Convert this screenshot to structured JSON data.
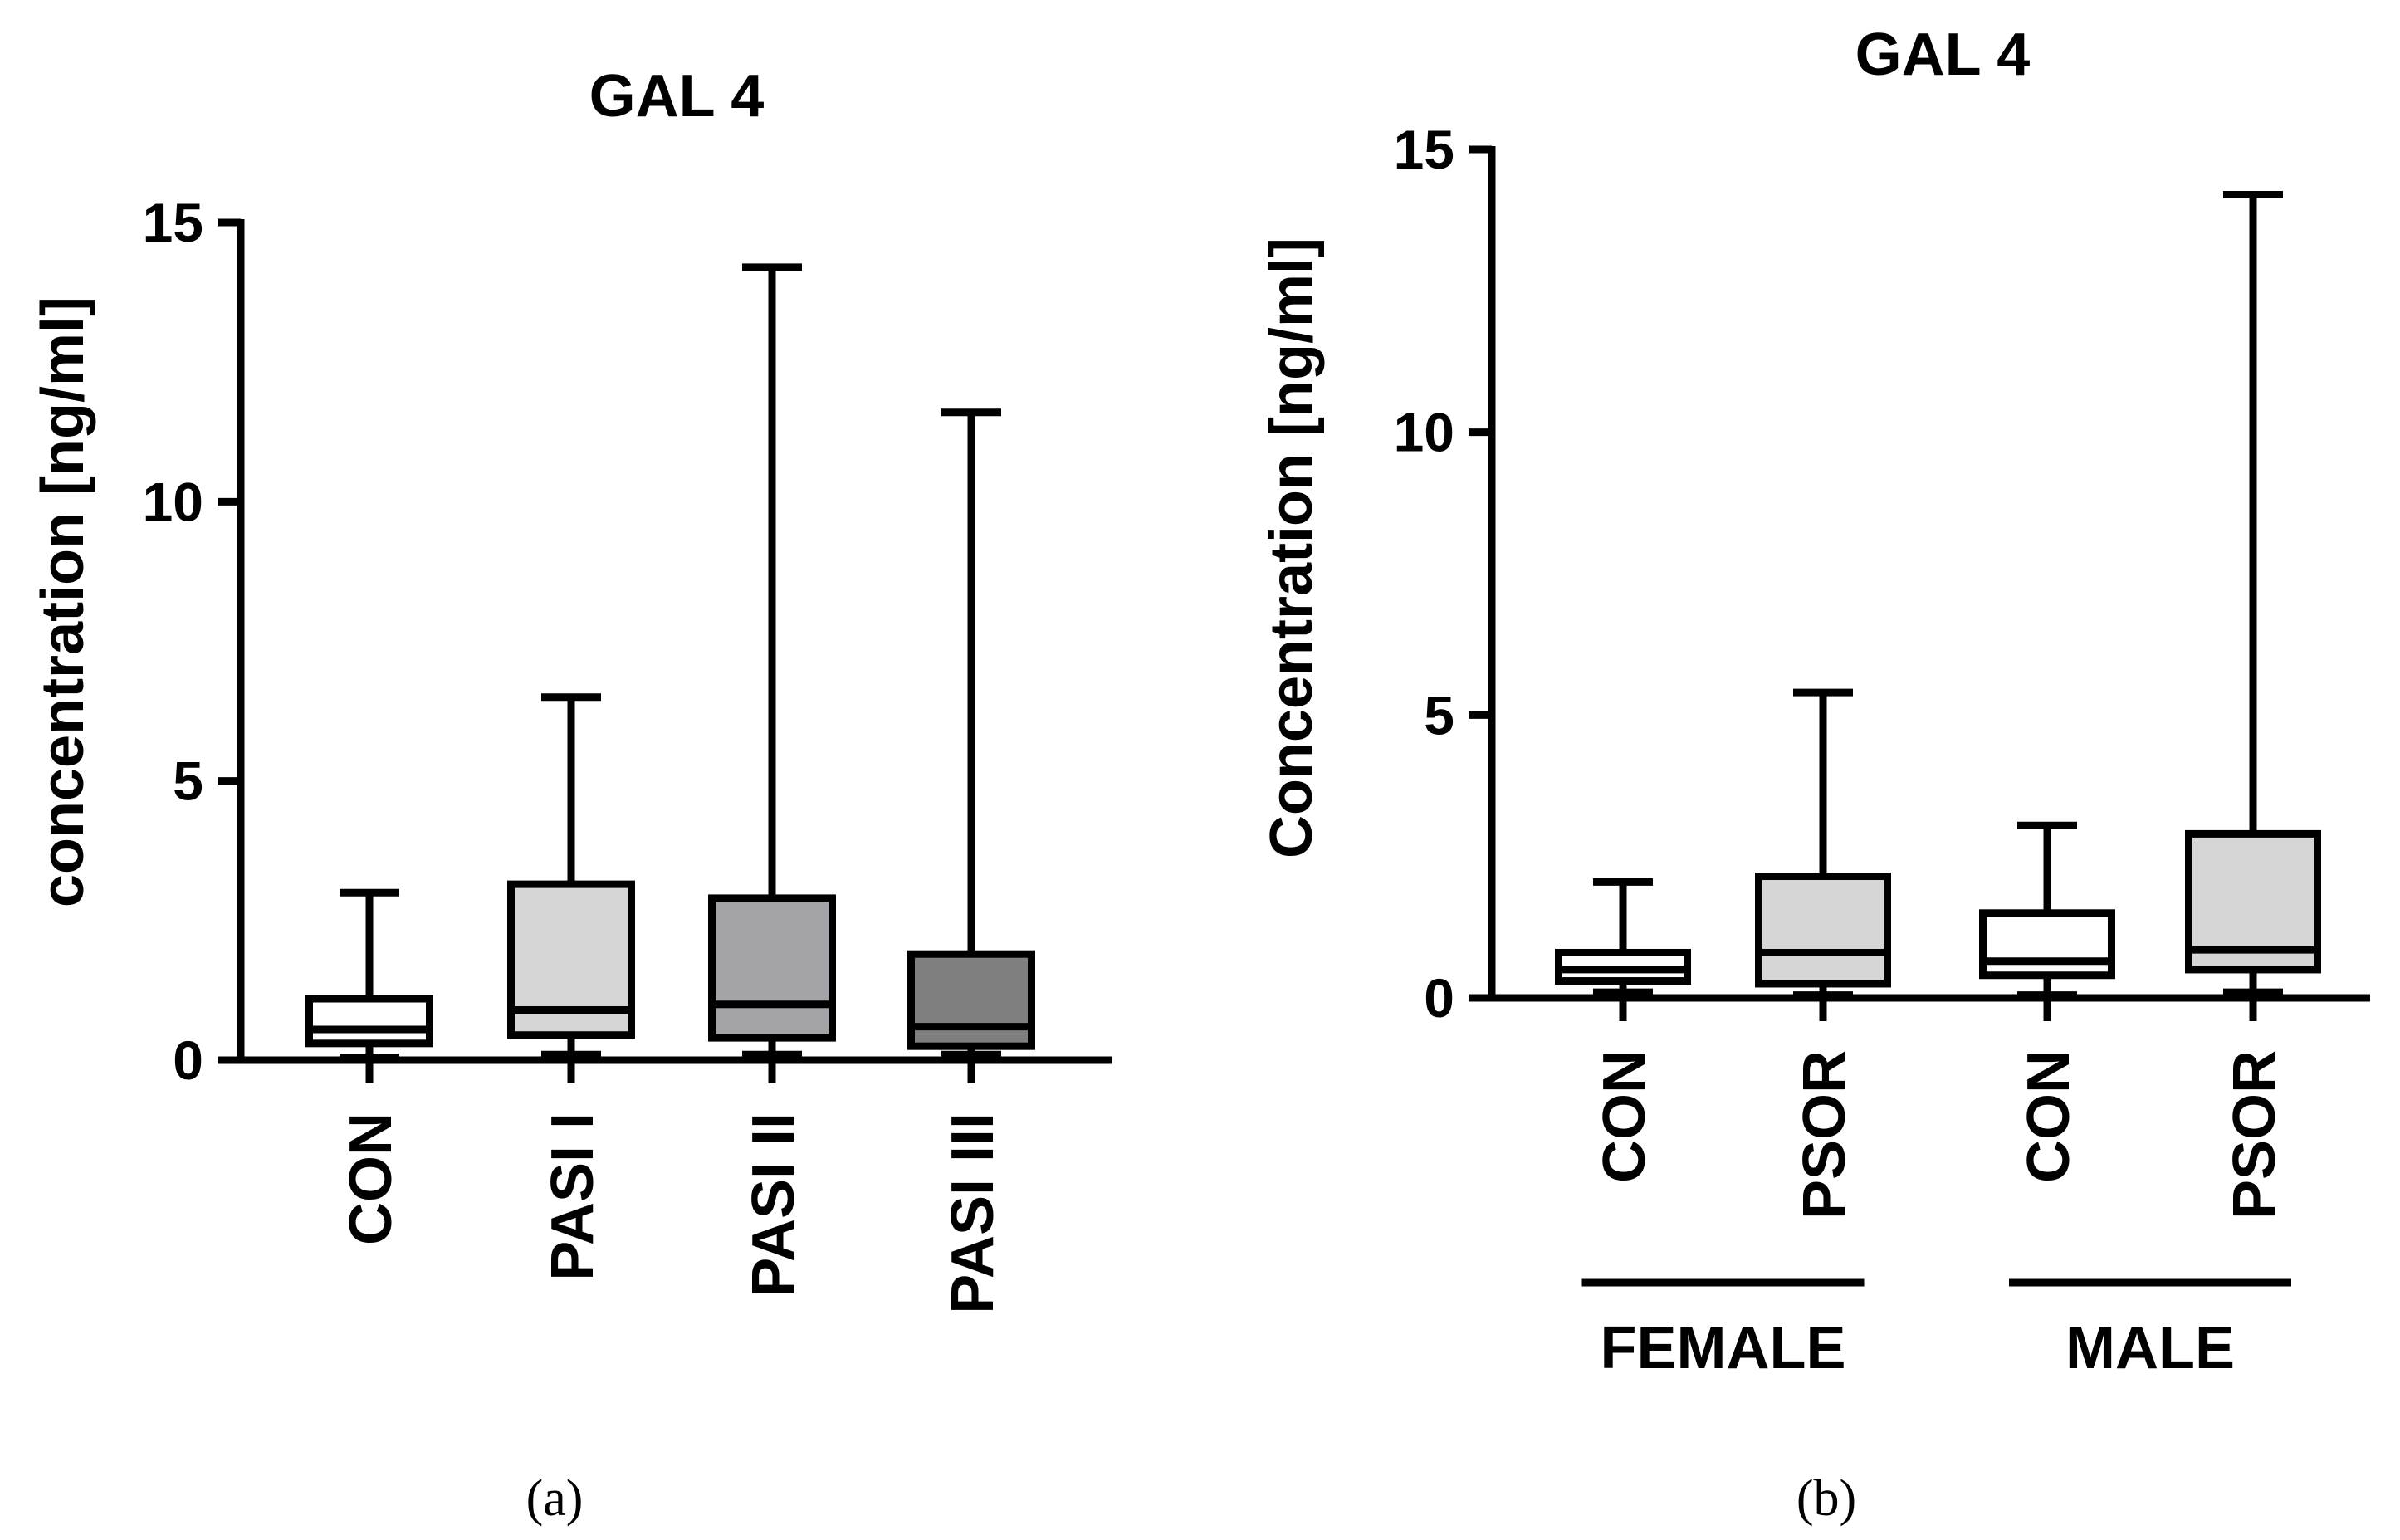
{
  "chart_data": [
    {
      "type": "boxplot",
      "panel_label": "(a)",
      "title": "GAL 4",
      "xlabel": "",
      "ylabel": "concentration [ng/ml]",
      "ylim": [
        0,
        15
      ],
      "yticks": [
        0,
        5,
        10,
        15
      ],
      "categories": [
        "CON",
        "PASI I",
        "PASI II",
        "PASI III"
      ],
      "boxes": [
        {
          "name": "CON",
          "min": 0.05,
          "q1": 0.3,
          "median": 0.55,
          "q3": 1.1,
          "max": 3.0,
          "fill": "#ffffff"
        },
        {
          "name": "PASI I",
          "min": 0.1,
          "q1": 0.45,
          "median": 0.9,
          "q3": 3.15,
          "max": 6.5,
          "fill": "#d6d6d6"
        },
        {
          "name": "PASI II",
          "min": 0.1,
          "q1": 0.4,
          "median": 1.0,
          "q3": 2.9,
          "max": 14.2,
          "fill": "#a3a3a8"
        },
        {
          "name": "PASI III",
          "min": 0.1,
          "q1": 0.25,
          "median": 0.6,
          "q3": 1.9,
          "max": 11.6,
          "fill": "#7f7f7f"
        }
      ],
      "groups": []
    },
    {
      "type": "boxplot",
      "panel_label": "(b)",
      "title": "GAL 4",
      "xlabel": "",
      "ylabel": "Concentration [ng/ml]",
      "ylim": [
        0,
        15
      ],
      "yticks": [
        0,
        5,
        10,
        15
      ],
      "categories": [
        "CON",
        "PSOR",
        "CON",
        "PSOR"
      ],
      "boxes": [
        {
          "name": "CON",
          "min": 0.1,
          "q1": 0.3,
          "median": 0.5,
          "q3": 0.8,
          "max": 2.05,
          "fill": "#ffffff"
        },
        {
          "name": "PSOR",
          "min": 0.05,
          "q1": 0.25,
          "median": 0.8,
          "q3": 2.15,
          "max": 5.4,
          "fill": "#d6d6d6"
        },
        {
          "name": "CON",
          "min": 0.05,
          "q1": 0.4,
          "median": 0.65,
          "q3": 1.5,
          "max": 3.05,
          "fill": "#ffffff"
        },
        {
          "name": "PSOR",
          "min": 0.1,
          "q1": 0.5,
          "median": 0.85,
          "q3": 2.9,
          "max": 14.2,
          "fill": "#d6d6d6"
        }
      ],
      "groups": [
        {
          "label": "FEMALE",
          "from": 0,
          "to": 1
        },
        {
          "label": "MALE",
          "from": 2,
          "to": 3
        }
      ]
    }
  ]
}
